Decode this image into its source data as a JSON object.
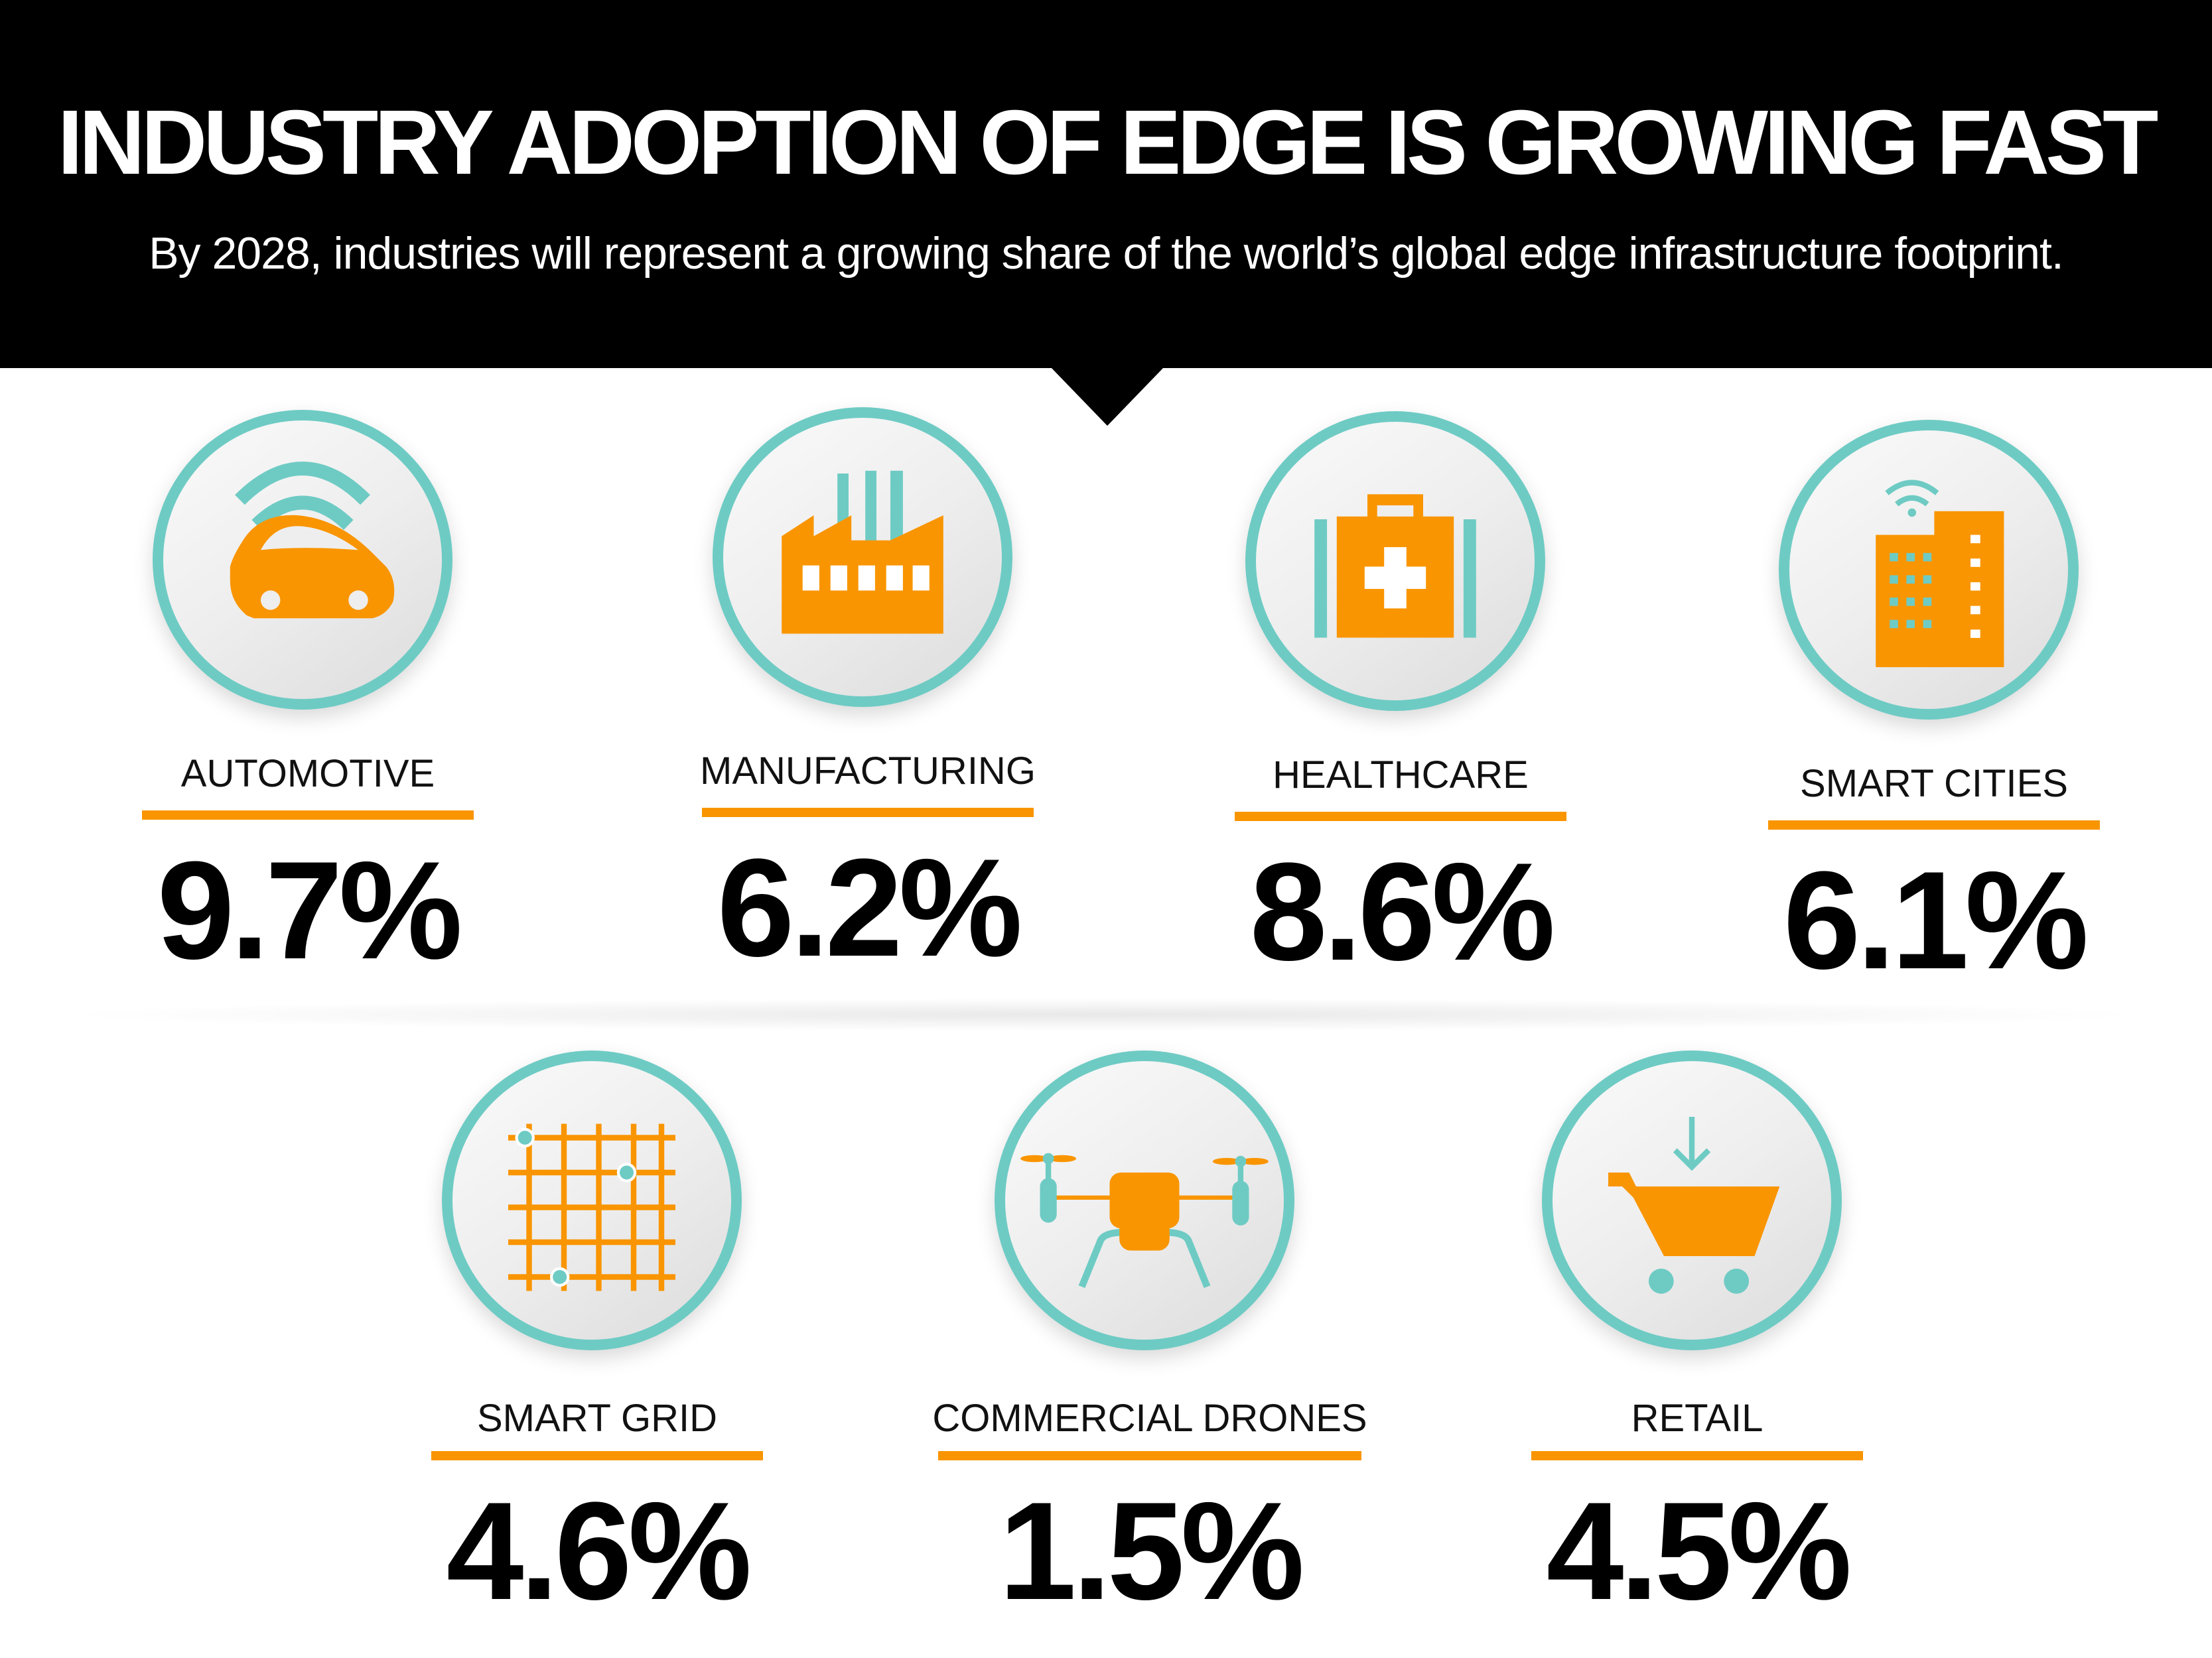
{
  "header": {
    "title": "INDUSTRY ADOPTION OF EDGE IS GROWING FAST",
    "subtitle": "By 2028, industries will represent a growing share of the world’s global edge infrastructure footprint."
  },
  "colors": {
    "accent": "#f99500",
    "ring": "#6ecbc4",
    "header_bg": "#000000"
  },
  "industries": [
    {
      "label": "AUTOMOTIVE",
      "value": "9.7%",
      "icon": "connected-car-icon"
    },
    {
      "label": "MANUFACTURING",
      "value": "6.2%",
      "icon": "factory-icon"
    },
    {
      "label": "HEALTHCARE",
      "value": "8.6%",
      "icon": "medical-kit-icon"
    },
    {
      "label": "SMART CITIES",
      "value": "6.1%",
      "icon": "smart-building-icon"
    },
    {
      "label": "SMART GRID",
      "value": "4.6%",
      "icon": "grid-icon"
    },
    {
      "label": "COMMERCIAL DRONES",
      "value": "1.5%",
      "icon": "drone-icon"
    },
    {
      "label": "RETAIL",
      "value": "4.5%",
      "icon": "shopping-cart-icon"
    }
  ]
}
